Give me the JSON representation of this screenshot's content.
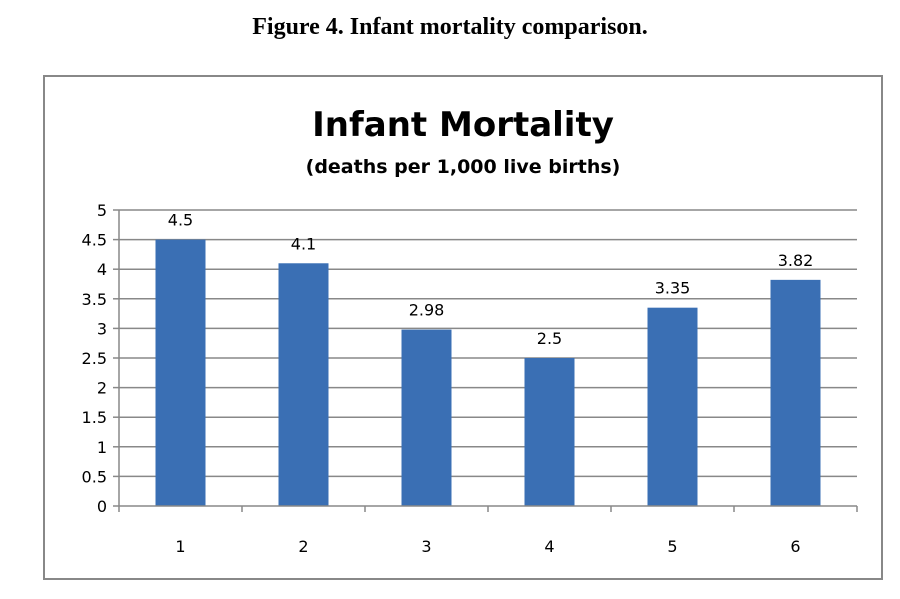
{
  "figure_caption": "Figure 4.  Infant mortality comparison.",
  "chart_data": {
    "type": "bar",
    "title": "Infant Mortality",
    "subtitle": "(deaths per 1,000 live births)",
    "categories": [
      "1",
      "2",
      "3",
      "4",
      "5",
      "6"
    ],
    "values": [
      4.5,
      4.1,
      2.98,
      2.5,
      3.35,
      3.82
    ],
    "data_labels": [
      "4.5",
      "4.1",
      "2.98",
      "2.5",
      "3.35",
      "3.82"
    ],
    "ylim": [
      0,
      5
    ],
    "yticks": [
      "0",
      "0.5",
      "1",
      "1.5",
      "2",
      "2.5",
      "3",
      "3.5",
      "4",
      "4.5",
      "5"
    ],
    "grid": true,
    "legend": "none",
    "bar_color": "#3A6FB4",
    "grid_color": "#888888"
  }
}
